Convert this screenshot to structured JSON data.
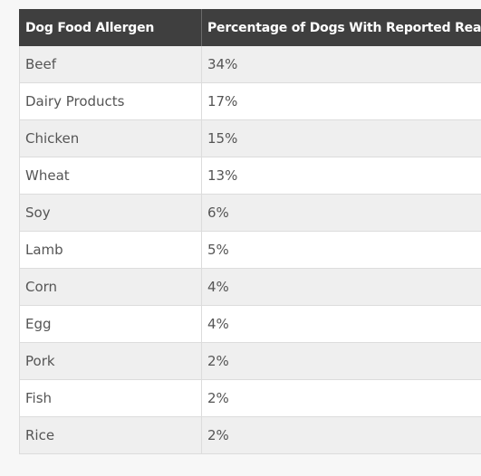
{
  "table": {
    "headers": [
      "Dog Food Allergen",
      "Percentage of Dogs With Reported Reaction"
    ],
    "rows": [
      [
        "Beef",
        "34%"
      ],
      [
        "Dairy Products",
        "17%"
      ],
      [
        "Chicken",
        "15%"
      ],
      [
        "Wheat",
        "13%"
      ],
      [
        "Soy",
        "6%"
      ],
      [
        "Lamb",
        "5%"
      ],
      [
        "Corn",
        "4%"
      ],
      [
        "Egg",
        "4%"
      ],
      [
        "Pork",
        "2%"
      ],
      [
        "Fish",
        "2%"
      ],
      [
        "Rice",
        "2%"
      ]
    ]
  }
}
